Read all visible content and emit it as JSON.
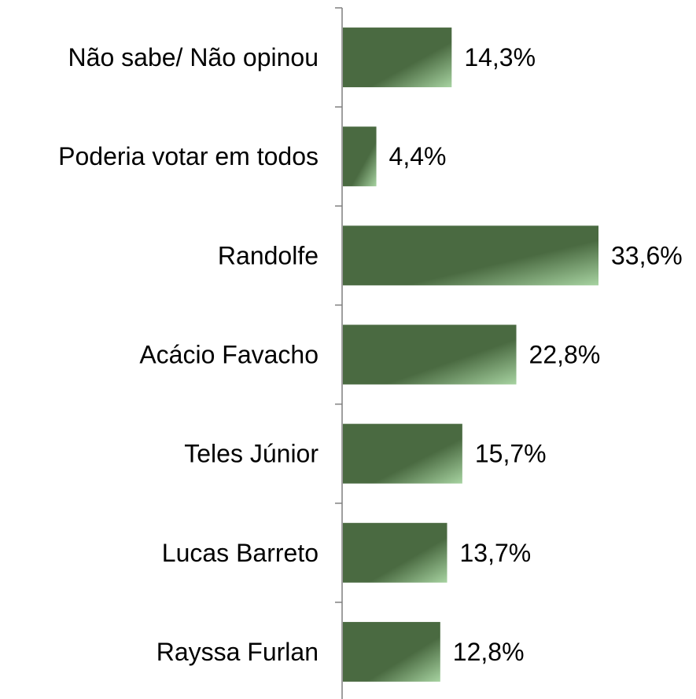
{
  "chart_data": {
    "type": "bar",
    "orientation": "horizontal",
    "categories": [
      "Não sabe/ Não opinou",
      "Poderia votar em todos",
      "Randolfe",
      "Acácio Favacho",
      "Teles Júnior",
      "Lucas Barreto",
      "Rayssa Furlan"
    ],
    "values": [
      14.3,
      4.4,
      33.6,
      22.8,
      15.7,
      13.7,
      12.8
    ],
    "value_labels": [
      "14,3%",
      "4,4%",
      "33,6%",
      "22,8%",
      "15,7%",
      "13,7%",
      "12,8%"
    ],
    "xlim": [
      0,
      35
    ],
    "grid": false,
    "legend": "none",
    "colors": {
      "bar_dark": "#4a6a41",
      "bar_light": "#a7d3a1",
      "axis": "#7f7f7f"
    }
  }
}
